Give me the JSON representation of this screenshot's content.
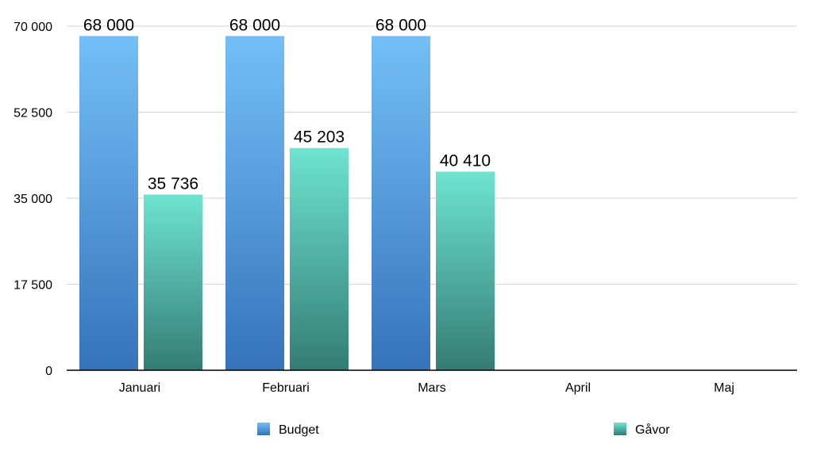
{
  "chart_data": {
    "type": "bar",
    "title": "",
    "xlabel": "",
    "ylabel": "",
    "categories": [
      "Januari",
      "Februari",
      "Mars",
      "April",
      "Maj"
    ],
    "series": [
      {
        "name": "Budget",
        "values": [
          68000,
          68000,
          68000,
          null,
          null
        ],
        "labels": [
          "68 000",
          "68 000",
          "68 000",
          "",
          ""
        ],
        "color_top": "#74bff8",
        "color_bottom": "#3673ba"
      },
      {
        "name": "Gåvor",
        "values": [
          35736,
          45203,
          40410,
          null,
          null
        ],
        "labels": [
          "35 736",
          "45 203",
          "40 410",
          "",
          ""
        ],
        "color_top": "#6ee4cf",
        "color_bottom": "#347c74"
      }
    ],
    "ylim": [
      0,
      70000
    ],
    "yticks": [
      0,
      17500,
      35000,
      52500,
      70000
    ],
    "ytick_labels": [
      "0",
      "17 500",
      "35 000",
      "52 500",
      "70 000"
    ],
    "grid": true,
    "legend_position": "bottom"
  }
}
